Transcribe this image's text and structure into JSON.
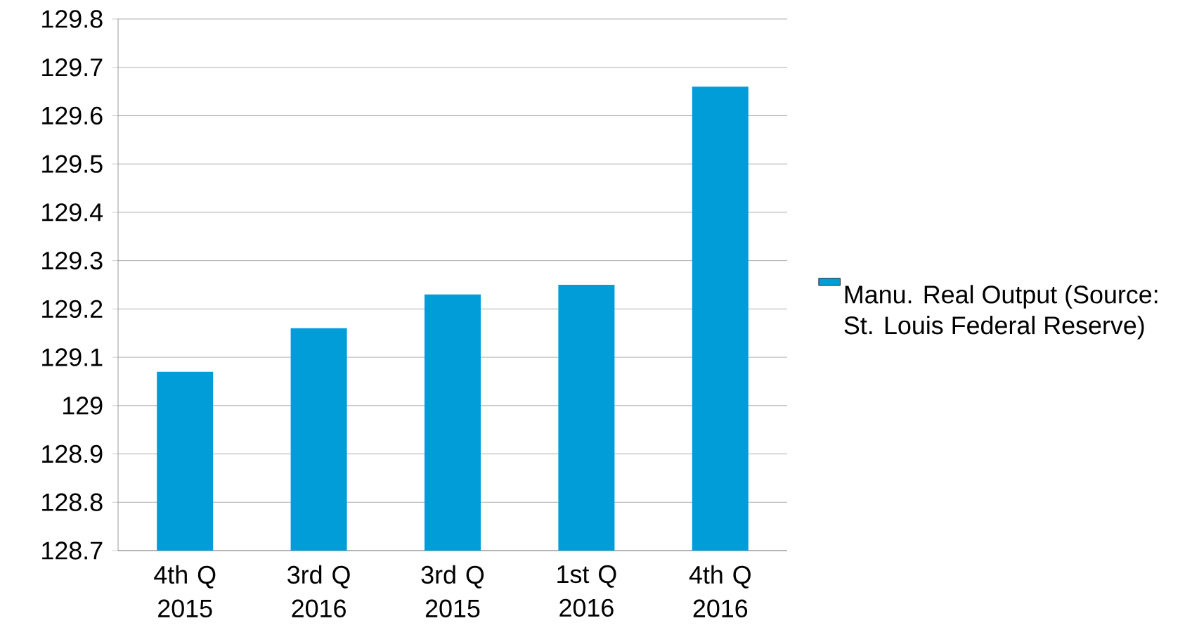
{
  "chart_data": {
    "type": "bar",
    "categories": [
      "4th Q 2015",
      "3rd Q 2016",
      "3rd Q 2015",
      "1st Q 2016",
      "4th Q 2016"
    ],
    "series": [
      {
        "name": "Manu. Real Output (Source: St. Louis Federal Reserve)",
        "color": "#009dd9",
        "values": [
          129.07,
          129.16,
          129.23,
          129.25,
          129.66
        ]
      }
    ],
    "ylim": [
      128.7,
      129.8
    ],
    "yticks": [
      128.7,
      128.8,
      128.9,
      129,
      129.1,
      129.2,
      129.3,
      129.4,
      129.5,
      129.6,
      129.7,
      129.8
    ],
    "grid": "y",
    "legend": "right"
  }
}
